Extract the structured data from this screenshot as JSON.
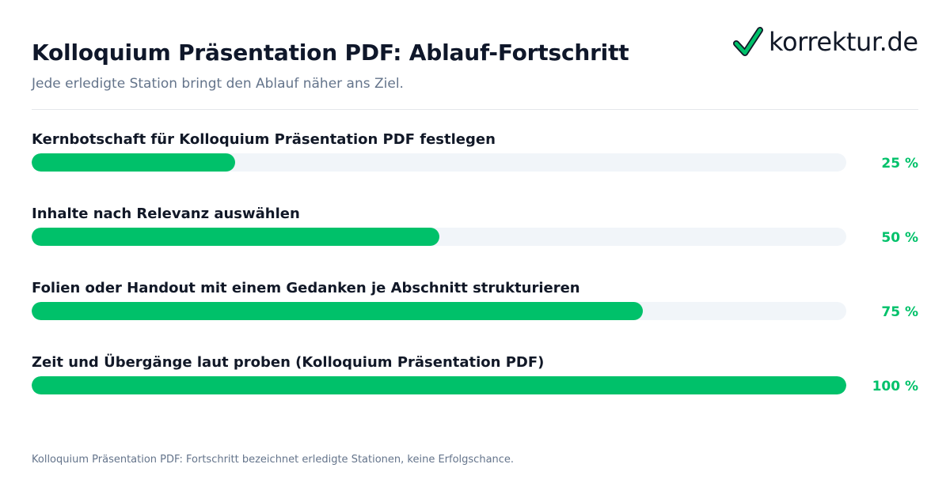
{
  "header": {
    "title": "Kolloquium Präsentation PDF: Ablauf-Fortschritt",
    "subtitle": "Jede erledigte Station bringt den Ablauf näher ans Ziel."
  },
  "logo": {
    "text": "korrektur.de",
    "icon": "checkmark-icon",
    "check_color": "#00c16a",
    "outline_color": "#111827"
  },
  "footer": {
    "note": "Kolloquium Präsentation PDF: Fortschritt bezeichnet erledigte Stationen, keine Erfolgschance."
  },
  "colors": {
    "accent": "#00c16a",
    "track": "#f1f5f9",
    "title": "#0f172a",
    "muted": "#64748b"
  },
  "chart_data": {
    "type": "bar",
    "orientation": "horizontal",
    "title": "Kolloquium Präsentation PDF: Ablauf-Fortschritt",
    "subtitle": "Jede erledigte Station bringt den Ablauf näher ans Ziel.",
    "categories": [
      "Kernbotschaft für Kolloquium Präsentation PDF festlegen",
      "Inhalte nach Relevanz auswählen",
      "Folien oder Handout mit einem Gedanken je Abschnitt strukturieren",
      "Zeit und Übergänge laut proben (Kolloquium Präsentation PDF)"
    ],
    "values": [
      25,
      50,
      75,
      100
    ],
    "value_labels": [
      "25 %",
      "50 %",
      "75 %",
      "100 %"
    ],
    "xlim": [
      0,
      100
    ],
    "unit": "%",
    "grid": false,
    "legend": "none"
  }
}
